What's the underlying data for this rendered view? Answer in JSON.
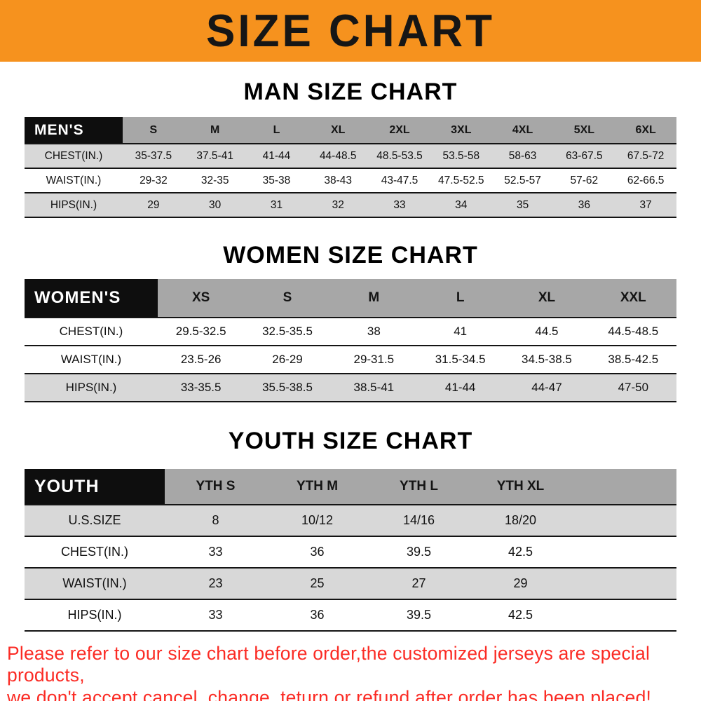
{
  "banner": {
    "title": "SIZE CHART"
  },
  "colors": {
    "banner_bg": "#F6921E",
    "header_black": "#0E0E0E",
    "header_gray": "#A7A7A7",
    "row_gray": "#D8D8D8",
    "footer_red": "#FB2B24"
  },
  "sections": [
    {
      "heading": "MAN SIZE CHART",
      "table": {
        "corner": "MEN'S",
        "columns": [
          "S",
          "M",
          "L",
          "XL",
          "2XL",
          "3XL",
          "4XL",
          "5XL",
          "6XL"
        ],
        "rows": [
          {
            "label": "CHEST(IN.)",
            "values": [
              "35-37.5",
              "37.5-41",
              "41-44",
              "44-48.5",
              "48.5-53.5",
              "53.5-58",
              "58-63",
              "63-67.5",
              "67.5-72"
            ]
          },
          {
            "label": "WAIST(IN.)",
            "values": [
              "29-32",
              "32-35",
              "35-38",
              "38-43",
              "43-47.5",
              "47.5-52.5",
              "52.5-57",
              "57-62",
              "62-66.5"
            ]
          },
          {
            "label": "HIPS(IN.)",
            "values": [
              "29",
              "30",
              "31",
              "32",
              "33",
              "34",
              "35",
              "36",
              "37"
            ]
          }
        ]
      }
    },
    {
      "heading": "WOMEN SIZE CHART",
      "table": {
        "corner": "WOMEN'S",
        "columns": [
          "XS",
          "S",
          "M",
          "L",
          "XL",
          "XXL"
        ],
        "rows": [
          {
            "label": "CHEST(IN.)",
            "values": [
              "29.5-32.5",
              "32.5-35.5",
              "38",
              "41",
              "44.5",
              "44.5-48.5"
            ]
          },
          {
            "label": "WAIST(IN.)",
            "values": [
              "23.5-26",
              "26-29",
              "29-31.5",
              "31.5-34.5",
              "34.5-38.5",
              "38.5-42.5"
            ]
          },
          {
            "label": "HIPS(IN.)",
            "values": [
              "33-35.5",
              "35.5-38.5",
              "38.5-41",
              "41-44",
              "44-47",
              "47-50"
            ]
          }
        ]
      }
    },
    {
      "heading": "YOUTH SIZE CHART",
      "table": {
        "corner": "YOUTH",
        "columns": [
          "YTH S",
          "YTH M",
          "YTH L",
          "YTH XL"
        ],
        "rows": [
          {
            "label": "U.S.SIZE",
            "values": [
              "8",
              "10/12",
              "14/16",
              "18/20"
            ]
          },
          {
            "label": "CHEST(IN.)",
            "values": [
              "33",
              "36",
              "39.5",
              "42.5"
            ]
          },
          {
            "label": "WAIST(IN.)",
            "values": [
              "23",
              "25",
              "27",
              "29"
            ]
          },
          {
            "label": "HIPS(IN.)",
            "values": [
              "33",
              "36",
              "39.5",
              "42.5"
            ]
          }
        ]
      }
    }
  ],
  "footer": {
    "line1": "Please refer to our size chart before order,the customized jerseys are special products,",
    "line2": "we don't accept cancel, change, teturn or refund after order has been placed!"
  }
}
